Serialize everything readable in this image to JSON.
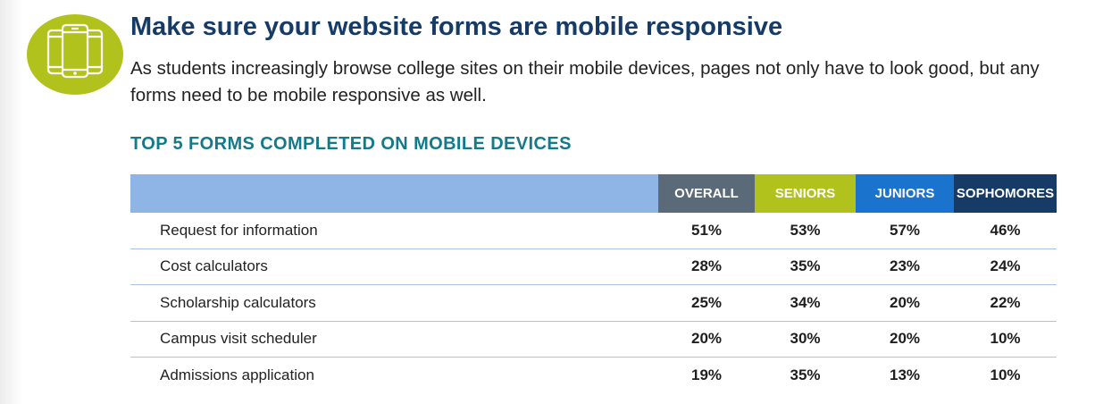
{
  "header": {
    "icon": "mobile-devices-icon",
    "title": "Make sure your website forms are mobile responsive",
    "intro": "As students increasingly browse college sites on their mobile devices, pages not only have to look good, but any forms need to be mobile responsive as well."
  },
  "section_title": "TOP 5 FORMS COMPLETED ON MOBILE DEVICES",
  "colors": {
    "icon_circle": "#b2c21c",
    "header_blank": "#8fb4e6",
    "overall": "#5b6a78",
    "seniors": "#b2c21c",
    "juniors": "#1a73cc",
    "sophomores": "#163b66"
  },
  "table": {
    "columns": [
      "OVERALL",
      "SENIORS",
      "JUNIORS",
      "SOPHOMORES"
    ],
    "rows": [
      {
        "label": "Request for information",
        "values": [
          "51%",
          "53%",
          "57%",
          "46%"
        ]
      },
      {
        "label": "Cost calculators",
        "values": [
          "28%",
          "35%",
          "23%",
          "24%"
        ]
      },
      {
        "label": "Scholarship calculators",
        "values": [
          "25%",
          "34%",
          "20%",
          "22%"
        ]
      },
      {
        "label": "Campus visit scheduler",
        "values": [
          "20%",
          "30%",
          "20%",
          "10%"
        ]
      },
      {
        "label": "Admissions application",
        "values": [
          "19%",
          "35%",
          "13%",
          "10%"
        ]
      }
    ]
  }
}
